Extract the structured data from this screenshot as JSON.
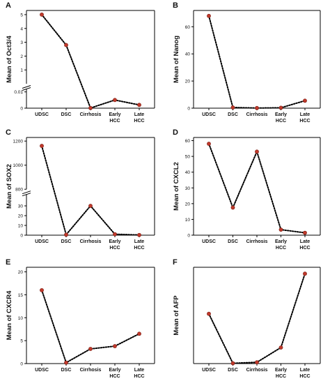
{
  "chart_data": [
    {
      "type": "line",
      "panel_label": "A",
      "ylabel": "Mean of Oct3/4",
      "categories": [
        "UDSC",
        "DSC",
        "Cirrhosis",
        "Early HCC",
        "Late HCC"
      ],
      "tick_labels": [
        "UDSC",
        "DSC",
        "Cirrhosis",
        "Early|HCC",
        "Late|HCC"
      ],
      "values": [
        5.0,
        2.8,
        0.0001,
        0.005,
        0.002
      ],
      "yaxis": {
        "broken": true,
        "lower_range": [
          0,
          0.012
        ],
        "upper_range": [
          0,
          5.3
        ],
        "lower_ticks": [
          {
            "value": 0,
            "label": "0"
          },
          {
            "value": 0.01,
            "label": "0.01"
          }
        ],
        "upper_ticks": [
          {
            "value": 1,
            "label": "1"
          },
          {
            "value": 2,
            "label": "2"
          },
          {
            "value": 3,
            "label": "3"
          },
          {
            "value": 4,
            "label": "4"
          },
          {
            "value": 5,
            "label": "5"
          }
        ]
      }
    },
    {
      "type": "line",
      "panel_label": "B",
      "ylabel": "Mean of Nanog",
      "categories": [
        "UDSC",
        "DSC",
        "Cirrhosis",
        "Early HCC",
        "Late HCC"
      ],
      "tick_labels": [
        "UDSC",
        "DSC",
        "Cirrhosis",
        "Early|HCC",
        "Late|HCC"
      ],
      "values": [
        68,
        0.5,
        0.1,
        0.3,
        5.5
      ],
      "ylim": [
        0,
        72
      ],
      "yticks": [
        0,
        20,
        40,
        60
      ]
    },
    {
      "type": "line",
      "panel_label": "C",
      "ylabel": "Mean of SOX2",
      "categories": [
        "UDSC",
        "DSC",
        "Cirrhosis",
        "Early HCC",
        "Late HCC"
      ],
      "tick_labels": [
        "UDSC",
        "DSC",
        "Cirrhosis",
        "Early|HCC",
        "Late|HCC"
      ],
      "values": [
        1160,
        0.5,
        30,
        1.0,
        0.2
      ],
      "yaxis": {
        "broken": true,
        "lower_range": [
          0,
          42
        ],
        "upper_range": [
          800,
          1230
        ],
        "lower_ticks": [
          {
            "value": 0,
            "label": "0"
          },
          {
            "value": 10,
            "label": "10"
          },
          {
            "value": 20,
            "label": "20"
          },
          {
            "value": 30,
            "label": "30"
          }
        ],
        "upper_ticks": [
          {
            "value": 800,
            "label": "800"
          },
          {
            "value": 1000,
            "label": "1000"
          },
          {
            "value": 1200,
            "label": "1200"
          }
        ]
      }
    },
    {
      "type": "line",
      "panel_label": "D",
      "ylabel": "Mean of CXCL2",
      "categories": [
        "UDSC",
        "DSC",
        "Cirrhosis",
        "Early HCC",
        "Late HCC"
      ],
      "tick_labels": [
        "UDSC",
        "DSC",
        "Cirrhosis",
        "Early|HCC",
        "Late|HCC"
      ],
      "values": [
        58,
        17.5,
        53,
        3.5,
        1.5
      ],
      "ylim": [
        0,
        62
      ],
      "yticks": [
        0,
        10,
        20,
        30,
        40,
        50,
        60
      ]
    },
    {
      "type": "line",
      "panel_label": "E",
      "ylabel": "Mean of CXCR4",
      "categories": [
        "UDSC",
        "DSC",
        "Cirrhosis",
        "Early HCC",
        "Late HCC"
      ],
      "tick_labels": [
        "UDSC",
        "DSC",
        "Cirrhosis",
        "Early|HCC",
        "Late|HCC"
      ],
      "values": [
        16,
        0.2,
        3.2,
        3.8,
        6.5
      ],
      "ylim": [
        0,
        21
      ],
      "yticks": [
        0,
        5,
        10,
        15,
        20
      ]
    },
    {
      "type": "line",
      "panel_label": "F",
      "ylabel": "Mean of AFP",
      "categories": [
        "UDSC",
        "DSC",
        "Cirrhosis",
        "Early HCC",
        "Late HCC"
      ],
      "tick_labels": [
        "UDSC",
        "DSC",
        "Cirrhosis",
        "Early|HCC",
        "Late|HCC"
      ],
      "values": [
        15.5,
        0.1,
        0.4,
        5.0,
        28
      ],
      "ylim": [
        0,
        30
      ],
      "yticks": []
    }
  ],
  "style": {
    "point_color": "#c0392b",
    "line_color": "#000000",
    "line_style": "dotted",
    "grid": false
  }
}
